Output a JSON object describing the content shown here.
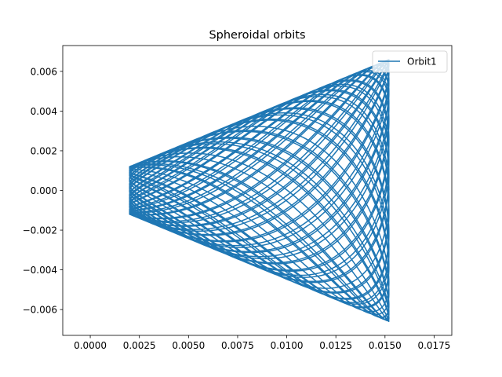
{
  "chart_data": {
    "type": "line",
    "title": "Spheroidal orbits",
    "xlabel": "",
    "ylabel": "",
    "xlim": [
      -0.0014,
      0.0184
    ],
    "ylim": [
      -0.0073,
      0.0073
    ],
    "x_ticks": [
      0.0,
      0.0025,
      0.005,
      0.0075,
      0.01,
      0.0125,
      0.015,
      0.0175
    ],
    "x_tick_labels": [
      "0.0000",
      "0.0025",
      "0.0050",
      "0.0075",
      "0.0100",
      "0.0125",
      "0.0150",
      "0.0175"
    ],
    "y_ticks": [
      -0.006,
      -0.004,
      -0.002,
      0.0,
      0.002,
      0.004,
      0.006
    ],
    "y_tick_labels": [
      "−0.006",
      "−0.004",
      "−0.002",
      "0.000",
      "0.002",
      "0.004",
      "0.006"
    ],
    "grid": false,
    "legend_position": "top-right",
    "series": [
      {
        "name": "Orbit1",
        "color": "#1f77b4",
        "orbit": {
          "x_min": 0.002,
          "x_max": 0.0152,
          "y_amplitude_min": 0.0012,
          "y_amplitude_max": 0.0066,
          "angular_frequency_ratio": 1.116,
          "revolutions": 40
        }
      }
    ]
  }
}
